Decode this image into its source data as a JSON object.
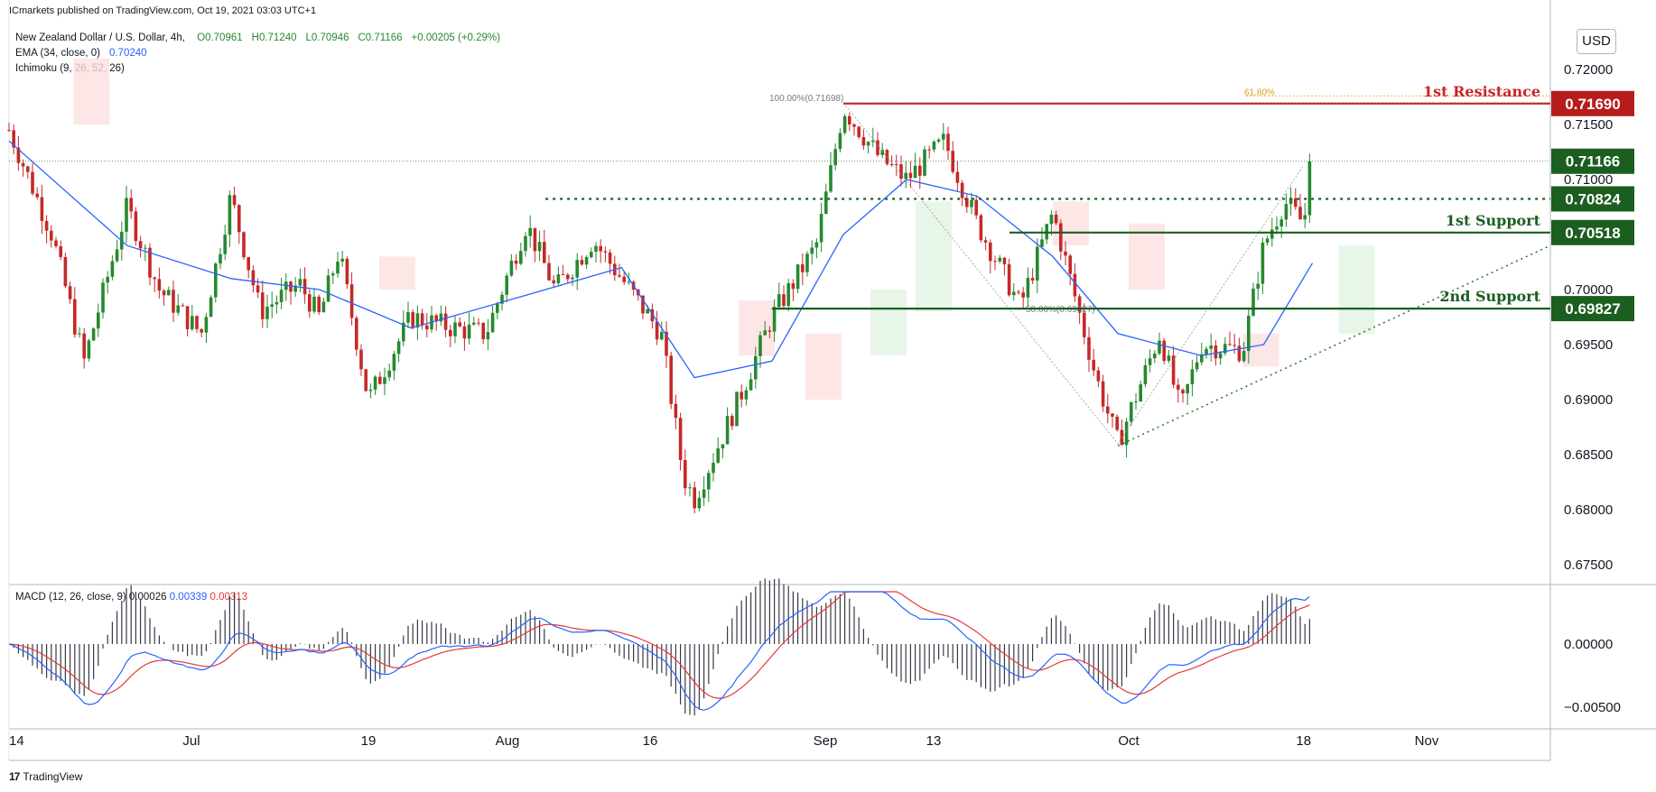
{
  "header": {
    "publisher": "ICmarkets published on TradingView.com, Oct 19, 2021 03:03 UTC+1"
  },
  "legend": {
    "symbol": "New Zealand Dollar / U.S. Dollar, 4h,",
    "open": "O0.70961",
    "high": "H0.71240",
    "low": "L0.70946",
    "close": "C0.71166",
    "change": "+0.00205 (+0.29%)",
    "ema_label": "EMA (34, close, 0)",
    "ema_value": "0.70240",
    "ichimoku_label": "Ichimoku (9, 26, 52, 26)"
  },
  "macd_legend": {
    "label": "MACD (12, 26, close, 9)",
    "hist": "0.00026",
    "macd": "0.00339",
    "signal": "0.00313"
  },
  "currency": "USD",
  "footer": {
    "brand": "TradingView"
  },
  "colors": {
    "up": "#26892f",
    "down": "#c62828",
    "ema": "#2962ff",
    "resistance": "#c62828",
    "support": "#1b5e20",
    "signal": "#e53935"
  },
  "chart_data": {
    "type": "candlestick",
    "timeframe": "4h",
    "x_ticks": [
      "14",
      "Jul",
      "19",
      "Aug",
      "16",
      "Sep",
      "13",
      "Oct",
      "18",
      "Nov"
    ],
    "y_ticks": [
      "0.72000",
      "0.71500",
      "0.71000",
      "0.70500",
      "0.70000",
      "0.69500",
      "0.69000",
      "0.68500",
      "0.68000",
      "0.67500"
    ],
    "macd_ticks": [
      "0.00000",
      "−0.00500"
    ],
    "ylim": [
      0.6725,
      0.7245
    ],
    "current_price": "0.71166",
    "levels": [
      {
        "label": "1st Resistance",
        "price": 0.7169,
        "price_label": "0.71690",
        "kind": "resistance"
      },
      {
        "label": "",
        "price": 0.70824,
        "price_label": "0.70824",
        "kind": "dotted"
      },
      {
        "label": "1st Support",
        "price": 0.70518,
        "price_label": "0.70518",
        "kind": "support"
      },
      {
        "label": "2nd Support",
        "price": 0.69827,
        "price_label": "0.69827",
        "kind": "support"
      }
    ],
    "fib": [
      {
        "label": "100.00%(0.71698)"
      },
      {
        "label": "61.80%"
      },
      {
        "label": "50.00%(0.69827)"
      }
    ],
    "price_path": [
      [
        "Jun 14",
        0.7145
      ],
      [
        "Jun 18",
        0.705
      ],
      [
        "Jun 21",
        0.6935
      ],
      [
        "Jun 25",
        0.7075
      ],
      [
        "Jun 28",
        0.7
      ],
      [
        "Jul 2",
        0.696
      ],
      [
        "Jul 5",
        0.7085
      ],
      [
        "Jul 8",
        0.698
      ],
      [
        "Jul 12",
        0.7005
      ],
      [
        "Jul 14",
        0.6975
      ],
      [
        "Jul 16",
        0.7035
      ],
      [
        "Jul 19",
        0.69
      ],
      [
        "Jul 23",
        0.6975
      ],
      [
        "Jul 27",
        0.6965
      ],
      [
        "Jul 30",
        0.696
      ],
      [
        "Aug 3",
        0.706
      ],
      [
        "Aug 6",
        0.7
      ],
      [
        "Aug 10",
        0.7045
      ],
      [
        "Aug 13",
        0.701
      ],
      [
        "Aug 17",
        0.696
      ],
      [
        "Aug 19",
        0.683
      ],
      [
        "Aug 20",
        0.681
      ],
      [
        "Aug 24",
        0.69
      ],
      [
        "Aug 27",
        0.6975
      ],
      [
        "Aug 31",
        0.704
      ],
      [
        "Sep 3",
        0.7165
      ],
      [
        "Sep 7",
        0.712
      ],
      [
        "Sep 10",
        0.71
      ],
      [
        "Sep 14",
        0.7135
      ],
      [
        "Sep 17",
        0.706
      ],
      [
        "Sep 21",
        0.6985
      ],
      [
        "Sep 24",
        0.707
      ],
      [
        "Sep 28",
        0.692
      ],
      [
        "Sep 30",
        0.686
      ],
      [
        "Oct 4",
        0.696
      ],
      [
        "Oct 6",
        0.689
      ],
      [
        "Oct 8",
        0.695
      ],
      [
        "Oct 12",
        0.6945
      ],
      [
        "Oct 14",
        0.704
      ],
      [
        "Oct 16",
        0.708
      ],
      [
        "Oct 18",
        0.706
      ],
      [
        "Oct 19",
        0.71166
      ]
    ],
    "ema_path": [
      [
        "Jun 14",
        0.7135
      ],
      [
        "Jun 25",
        0.704
      ],
      [
        "Jul 5",
        0.701
      ],
      [
        "Jul 14",
        0.7
      ],
      [
        "Jul 23",
        0.6965
      ],
      [
        "Aug 3",
        0.6995
      ],
      [
        "Aug 13",
        0.702
      ],
      [
        "Aug 20",
        0.692
      ],
      [
        "Aug 27",
        0.6935
      ],
      [
        "Sep 3",
        0.705
      ],
      [
        "Sep 10",
        0.71
      ],
      [
        "Sep 17",
        0.7085
      ],
      [
        "Sep 24",
        0.703
      ],
      [
        "Sep 30",
        0.696
      ],
      [
        "Oct 8",
        0.694
      ],
      [
        "Oct 14",
        0.695
      ],
      [
        "Oct 19",
        0.7024
      ]
    ]
  }
}
